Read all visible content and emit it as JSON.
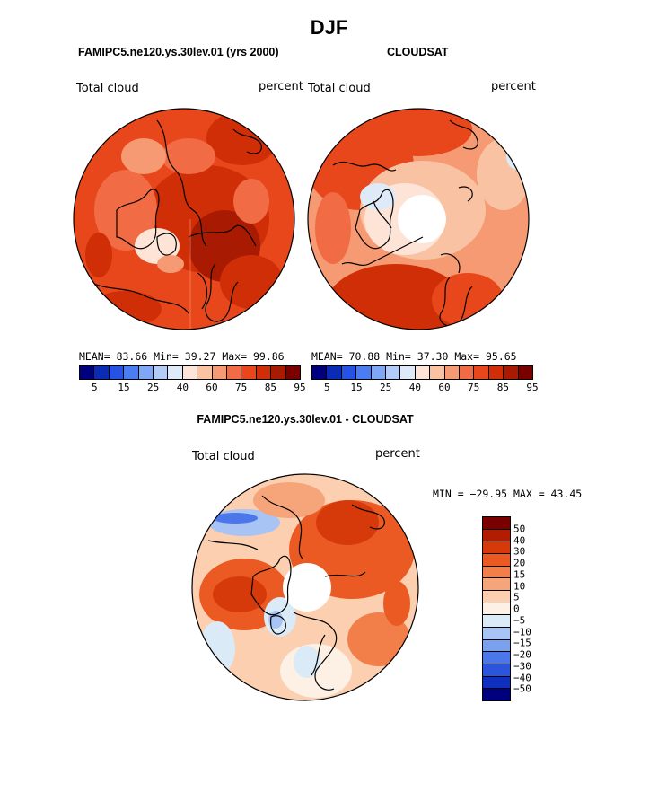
{
  "page_title": "DJF",
  "colors": {
    "palette_abs": [
      "#00007f",
      "#0a2bb4",
      "#2553e6",
      "#4a7df2",
      "#7fa7f5",
      "#b3ccf7",
      "#dfeaf8",
      "#fde4d6",
      "#f9c2a3",
      "#f59a72",
      "#f16b45",
      "#e8471c",
      "#cf2e07",
      "#a81a02",
      "#7a0000"
    ],
    "palette_diff": [
      "#7a0000",
      "#b01d02",
      "#d63a0b",
      "#ec5a24",
      "#f27f4a",
      "#f6a47a",
      "#fbcfb0",
      "#fdf0e4",
      "#dbeaf7",
      "#a8c4f4",
      "#7aa0f0",
      "#4b77ea",
      "#2a55dc",
      "#0f2fbe",
      "#00007f"
    ]
  },
  "panels": [
    {
      "case_title": "FAMIPC5.ne120.ys.30lev.01 (yrs 2000)",
      "field_left": "Total cloud",
      "field_right": "percent",
      "stats": {
        "mean_label": "MEAN=",
        "mean": "83.66",
        "min_label": "Min=",
        "min": "39.27",
        "max_label": "Max=",
        "max": "99.86"
      },
      "colorbar_ticks": [
        "5",
        "15",
        "25",
        "40",
        "60",
        "75",
        "85",
        "95"
      ]
    },
    {
      "case_title": "CLOUDSAT",
      "field_left": "Total cloud",
      "field_right": "percent",
      "stats": {
        "mean_label": "MEAN=",
        "mean": "70.88",
        "min_label": "Min=",
        "min": "37.30",
        "max_label": "Max=",
        "max": "95.65"
      },
      "colorbar_ticks": [
        "5",
        "15",
        "25",
        "40",
        "60",
        "75",
        "85",
        "95"
      ]
    }
  ],
  "diff_panel": {
    "title": "FAMIPC5.ne120.ys.30lev.01 - CLOUDSAT",
    "field_left": "Total cloud",
    "field_right": "percent",
    "minmax": "MIN = −29.95 MAX =  43.45",
    "colorbar_ticks": [
      "50",
      "40",
      "30",
      "20",
      "15",
      "10",
      "5",
      "0",
      "−5",
      "−10",
      "−15",
      "−20",
      "−30",
      "−40",
      "−50"
    ]
  },
  "chart_data": [
    {
      "type": "heatmap",
      "title": "FAMIPC5.ne120.ys.30lev.01 (yrs 2000)",
      "projection": "north polar stereographic",
      "variable": "Total cloud",
      "units": "percent",
      "mean": 83.66,
      "min": 39.27,
      "max": 99.86,
      "contour_levels": [
        5,
        10,
        15,
        20,
        25,
        30,
        40,
        50,
        60,
        65,
        70,
        75,
        80,
        85,
        90,
        95
      ]
    },
    {
      "type": "heatmap",
      "title": "CLOUDSAT",
      "projection": "north polar stereographic",
      "variable": "Total cloud",
      "units": "percent",
      "mean": 70.88,
      "min": 37.3,
      "max": 95.65,
      "contour_levels": [
        5,
        10,
        15,
        20,
        25,
        30,
        40,
        50,
        60,
        65,
        70,
        75,
        80,
        85,
        90,
        95
      ]
    },
    {
      "type": "heatmap",
      "title": "FAMIPC5.ne120.ys.30lev.01 - CLOUDSAT",
      "projection": "north polar stereographic",
      "variable": "Total cloud",
      "units": "percent",
      "min": -29.95,
      "max": 43.45,
      "contour_levels": [
        -50,
        -40,
        -30,
        -20,
        -15,
        -10,
        -5,
        0,
        5,
        10,
        15,
        20,
        30,
        40,
        50
      ]
    }
  ]
}
